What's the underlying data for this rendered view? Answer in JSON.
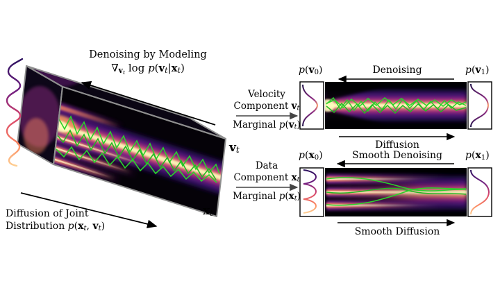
{
  "left_panel": {
    "denoising_title": "Denoising by Modeling",
    "denoising_formula": [
      {
        "t": "∇",
        "s": "rm"
      },
      {
        "t": "v",
        "s": "subbf"
      },
      {
        "t": "t",
        "s": "ssub"
      },
      {
        "t": " log ",
        "s": "rm"
      },
      {
        "t": "p",
        "s": "it"
      },
      {
        "t": "(",
        "s": "rm"
      },
      {
        "t": "v",
        "s": "bf"
      },
      {
        "t": "t",
        "s": "sub"
      },
      {
        "t": "|",
        "s": "rm"
      },
      {
        "t": "x",
        "s": "bf"
      },
      {
        "t": "t",
        "s": "sub"
      },
      {
        "t": ")",
        "s": "rm"
      }
    ],
    "diffusion_line1": "Diffusion of Joint",
    "diffusion_line2": [
      {
        "t": "Distribution ",
        "s": "rm"
      },
      {
        "t": "p",
        "s": "it"
      },
      {
        "t": "(",
        "s": "rm"
      },
      {
        "t": "x",
        "s": "bf"
      },
      {
        "t": "t",
        "s": "sub"
      },
      {
        "t": ", ",
        "s": "rm"
      },
      {
        "t": "v",
        "s": "bf"
      },
      {
        "t": "t",
        "s": "sub"
      },
      {
        "t": ")",
        "s": "rm"
      }
    ],
    "axis_v": [
      {
        "t": "v",
        "s": "bf"
      },
      {
        "t": "t",
        "s": "sub"
      }
    ],
    "axis_x": [
      {
        "t": "x",
        "s": "bf"
      },
      {
        "t": "t",
        "s": "sub"
      }
    ]
  },
  "middle": {
    "velocity_line1": "Velocity",
    "velocity_line2": [
      {
        "t": "Component ",
        "s": "rm"
      },
      {
        "t": "v",
        "s": "bf"
      },
      {
        "t": "t",
        "s": "sub"
      }
    ],
    "velocity_line3": [
      {
        "t": "Marginal ",
        "s": "rm"
      },
      {
        "t": "p",
        "s": "it"
      },
      {
        "t": "(",
        "s": "rm"
      },
      {
        "t": "v",
        "s": "bf"
      },
      {
        "t": "t",
        "s": "sub"
      },
      {
        "t": ")",
        "s": "rm"
      }
    ],
    "data_line1": "Data",
    "data_line2": [
      {
        "t": "Component ",
        "s": "rm"
      },
      {
        "t": "x",
        "s": "bf"
      },
      {
        "t": "t",
        "s": "sub"
      }
    ],
    "data_line3": [
      {
        "t": "Marginal ",
        "s": "rm"
      },
      {
        "t": "p",
        "s": "it"
      },
      {
        "t": "(",
        "s": "rm"
      },
      {
        "t": "x",
        "s": "bf"
      },
      {
        "t": "t",
        "s": "sub"
      },
      {
        "t": ")",
        "s": "rm"
      }
    ]
  },
  "velocity_panel": {
    "label_left": [
      {
        "t": "p",
        "s": "it"
      },
      {
        "t": "(",
        "s": "rm"
      },
      {
        "t": "v",
        "s": "bf"
      },
      {
        "t": "0",
        "s": "subn"
      },
      {
        "t": ")",
        "s": "rm"
      }
    ],
    "label_right": [
      {
        "t": "p",
        "s": "it"
      },
      {
        "t": "(",
        "s": "rm"
      },
      {
        "t": "v",
        "s": "bf"
      },
      {
        "t": "1",
        "s": "subn"
      },
      {
        "t": ")",
        "s": "rm"
      }
    ],
    "denoising": "Denoising",
    "diffusion": "Diffusion"
  },
  "data_panel": {
    "label_left": [
      {
        "t": "p",
        "s": "it"
      },
      {
        "t": "(",
        "s": "rm"
      },
      {
        "t": "x",
        "s": "bf"
      },
      {
        "t": "0",
        "s": "subn"
      },
      {
        "t": ")",
        "s": "rm"
      }
    ],
    "label_right": [
      {
        "t": "p",
        "s": "it"
      },
      {
        "t": "(",
        "s": "rm"
      },
      {
        "t": "x",
        "s": "bf"
      },
      {
        "t": "1",
        "s": "subn"
      },
      {
        "t": ")",
        "s": "rm"
      }
    ],
    "denoising": "Smooth Denoising",
    "diffusion": "Smooth Diffusion"
  },
  "colors": {
    "background": "#ffffff",
    "trajectory_green": "#2bd02b",
    "magma_core": "#fcfdbf",
    "magma_orange": "#fb8861",
    "magma_red": "#de4968",
    "magma_purple": "#8c2981",
    "magma_dark": "#2c115f",
    "magma_black": "#000004",
    "box_edge": "#8f8f8f",
    "arrow_black": "#000000",
    "arrow_gray": "#444444"
  }
}
